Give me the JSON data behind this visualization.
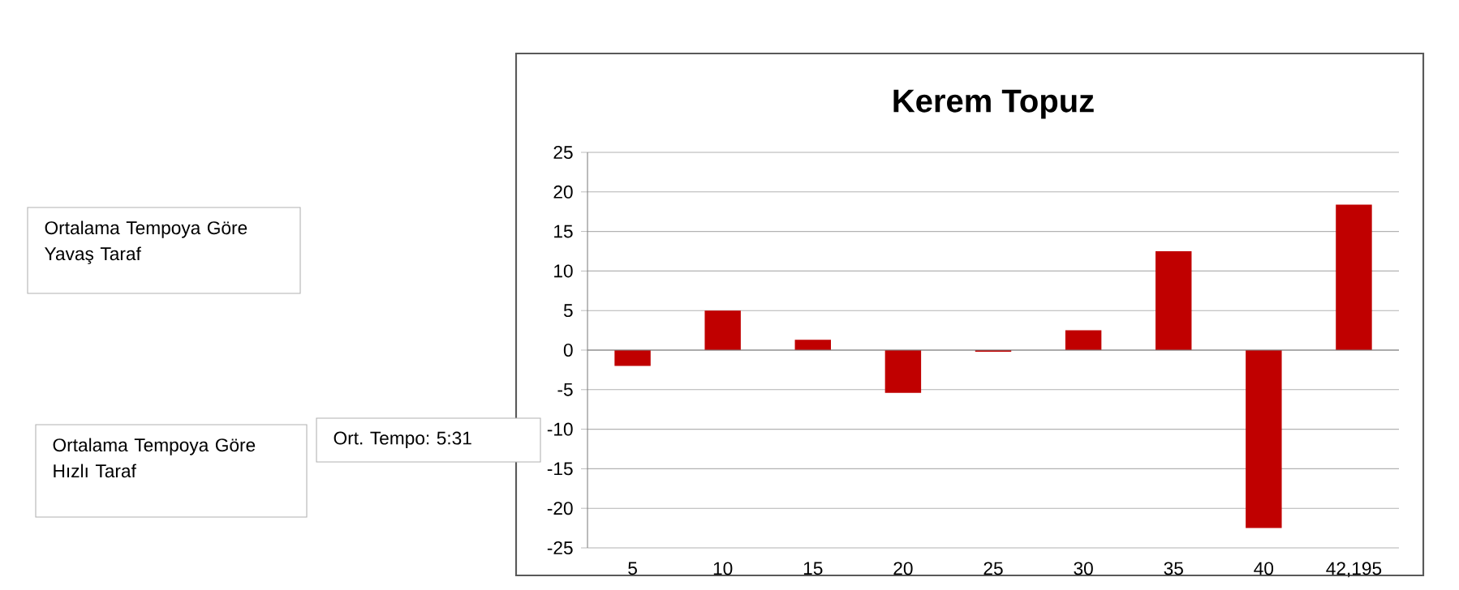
{
  "chart_data": {
    "type": "bar",
    "title": "Kerem Topuz",
    "categories": [
      "5",
      "10",
      "15",
      "20",
      "25",
      "30",
      "35",
      "40",
      "42,195"
    ],
    "values": [
      -2,
      5,
      1.3,
      -5.4,
      -0.2,
      2.5,
      12.5,
      -22.5,
      18.4
    ],
    "color": "#c00000",
    "ylim": [
      -25,
      25
    ],
    "yticks": [
      -25,
      -20,
      -15,
      -10,
      -5,
      0,
      5,
      10,
      15,
      20,
      25
    ],
    "grid": "y",
    "annotations": [
      "Ortalama Tempoya Göre Yavaş Taraf",
      "Ortalama Tempoya Göre Hızlı Taraf",
      "Ort. Tempo: 5:31"
    ]
  }
}
